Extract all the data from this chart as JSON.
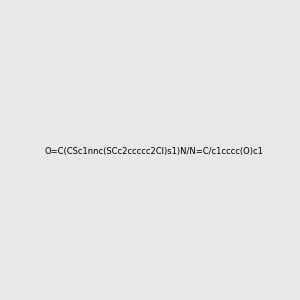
{
  "background_color": "#e8e8e8",
  "fig_width": 3.0,
  "fig_height": 3.0,
  "dpi": 100,
  "use_rdkit": true,
  "smiles": "O=C(CSc1nnc(SCc2ccccc2Cl)s1)N/N=C/c1cccc(O)c1"
}
